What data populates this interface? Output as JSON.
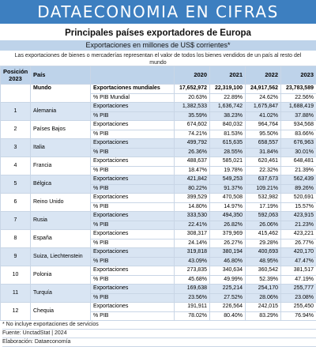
{
  "banner": "DATAECONOMIA EN CIFRAS",
  "title": "Principales países exportadores de Europa",
  "subtitle": "Exportaciones en millones de US$ corrientes*",
  "description": "Las exportaciones de bienes o mercaderías representan el valor de todos los bienes vendidos de un país al resto del mundo",
  "header": {
    "position": "Posición 2023",
    "country": "País",
    "years": [
      "2020",
      "2021",
      "2022",
      "2023"
    ]
  },
  "world": {
    "label": "Mundo",
    "row1": {
      "indicator": "Exportaciones mundiales",
      "values": [
        "17,652,972",
        "22,319,100",
        "24,917,562",
        "23,783,589"
      ]
    },
    "row2": {
      "indicator": "% PIB Mundial",
      "values": [
        "20.63%",
        "22.89%",
        "24.62%",
        "22.56%"
      ]
    }
  },
  "countries": [
    {
      "pos": "1",
      "name": "Alemania",
      "exports": [
        "1,382,533",
        "1,636,742",
        "1,675,847",
        "1,688,419"
      ],
      "pib": [
        "35.59%",
        "38.23%",
        "41.02%",
        "37.88%"
      ]
    },
    {
      "pos": "2",
      "name": "Países Bajos",
      "exports": [
        "674,602",
        "840,032",
        "964,764",
        "934,568"
      ],
      "pib": [
        "74.21%",
        "81.53%",
        "95.50%",
        "83.66%"
      ]
    },
    {
      "pos": "3",
      "name": "Italia",
      "exports": [
        "499,792",
        "615,635",
        "658,557",
        "676,963"
      ],
      "pib": [
        "26.36%",
        "28.55%",
        "31.84%",
        "30.01%"
      ]
    },
    {
      "pos": "4",
      "name": "Francia",
      "exports": [
        "488,637",
        "585,021",
        "620,461",
        "648,481"
      ],
      "pib": [
        "18.47%",
        "19.78%",
        "22.32%",
        "21.39%"
      ]
    },
    {
      "pos": "5",
      "name": "Bélgica",
      "exports": [
        "421,842",
        "549,253",
        "637,673",
        "562,439"
      ],
      "pib": [
        "80.22%",
        "91.37%",
        "109.21%",
        "89.26%"
      ]
    },
    {
      "pos": "6",
      "name": "Reino Unido",
      "exports": [
        "399,529",
        "470,508",
        "532,982",
        "520,691"
      ],
      "pib": [
        "14.80%",
        "14.97%",
        "17.19%",
        "15.57%"
      ]
    },
    {
      "pos": "7",
      "name": "Rusia",
      "exports": [
        "333,530",
        "494,350",
        "592,063",
        "423,915"
      ],
      "pib": [
        "22.41%",
        "26.82%",
        "26.06%",
        "21.23%"
      ]
    },
    {
      "pos": "8",
      "name": "España",
      "exports": [
        "308,317",
        "379,969",
        "415,462",
        "423,221"
      ],
      "pib": [
        "24.14%",
        "26.27%",
        "29.28%",
        "26.77%"
      ]
    },
    {
      "pos": "9",
      "name": "Suiza, Liechtenstein",
      "exports": [
        "319,818",
        "380,194",
        "400,693",
        "420,170"
      ],
      "pib": [
        "43.09%",
        "46.80%",
        "48.95%",
        "47.47%"
      ]
    },
    {
      "pos": "10",
      "name": "Polonia",
      "exports": [
        "273,835",
        "340,634",
        "360,542",
        "381,517"
      ],
      "pib": [
        "45.68%",
        "49.99%",
        "52.39%",
        "47.19%"
      ]
    },
    {
      "pos": "11",
      "name": "Turquía",
      "exports": [
        "169,638",
        "225,214",
        "254,170",
        "255,777"
      ],
      "pib": [
        "23.56%",
        "27.52%",
        "28.06%",
        "23.08%"
      ]
    },
    {
      "pos": "12",
      "name": "Chequia",
      "exports": [
        "191,911",
        "226,564",
        "242,015",
        "255,450"
      ],
      "pib": [
        "78.02%",
        "80.40%",
        "83.29%",
        "76.94%"
      ]
    }
  ],
  "row_labels": {
    "exports": "Exportaciones",
    "pib": "% PIB"
  },
  "notes": {
    "footnote": "* No incluye exportaciones de servicios",
    "source": "Fuente: UnctadStat | 2024",
    "credit": "Elaboración: Dataeconomía"
  },
  "colors": {
    "banner": "#3d7fc0",
    "header_fill": "#bed3ea",
    "alt_row_fill": "#d9e5f3"
  }
}
